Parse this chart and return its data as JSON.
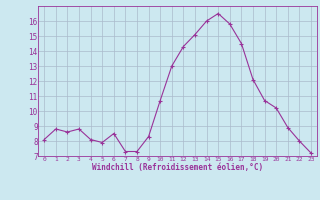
{
  "x": [
    0,
    1,
    2,
    3,
    4,
    5,
    6,
    7,
    8,
    9,
    10,
    11,
    12,
    13,
    14,
    15,
    16,
    17,
    18,
    19,
    20,
    21,
    22,
    23
  ],
  "y": [
    8.1,
    8.8,
    8.6,
    8.8,
    8.1,
    7.9,
    8.5,
    7.3,
    7.3,
    8.3,
    10.7,
    13.0,
    14.3,
    15.1,
    16.0,
    16.5,
    15.8,
    14.5,
    12.1,
    10.7,
    10.2,
    8.9,
    8.0,
    7.2
  ],
  "line_color": "#993399",
  "marker": "+",
  "marker_size": 3,
  "bg_color": "#cce8f0",
  "grid_color": "#aabbcc",
  "xlabel": "Windchill (Refroidissement éolien,°C)",
  "xlabel_color": "#993399",
  "tick_color": "#993399",
  "ylim": [
    7,
    17
  ],
  "xlim": [
    -0.5,
    23.5
  ],
  "yticks": [
    7,
    8,
    9,
    10,
    11,
    12,
    13,
    14,
    15,
    16
  ],
  "xticks": [
    0,
    1,
    2,
    3,
    4,
    5,
    6,
    7,
    8,
    9,
    10,
    11,
    12,
    13,
    14,
    15,
    16,
    17,
    18,
    19,
    20,
    21,
    22,
    23
  ]
}
